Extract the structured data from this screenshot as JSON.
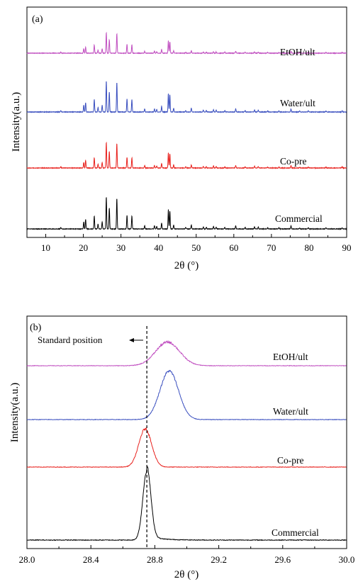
{
  "chart_data": [
    {
      "type": "line",
      "panel": "(a)",
      "xlabel": "2θ (°)",
      "ylabel": "Intensity(a.u.)",
      "xlim": [
        5,
        90
      ],
      "xticks": [
        10,
        20,
        30,
        40,
        50,
        60,
        70,
        80,
        90
      ],
      "y_ticks_shown": false,
      "grid": false,
      "legend": "none",
      "series_order": "stacked, top to bottom",
      "peaks": [
        {
          "x": 14.0,
          "h": 0.05
        },
        {
          "x": 20.1,
          "h": 0.22
        },
        {
          "x": 20.6,
          "h": 0.3
        },
        {
          "x": 22.9,
          "h": 0.4
        },
        {
          "x": 23.9,
          "h": 0.15
        },
        {
          "x": 25.0,
          "h": 0.22
        },
        {
          "x": 26.1,
          "h": 1.0
        },
        {
          "x": 26.9,
          "h": 0.65
        },
        {
          "x": 28.9,
          "h": 0.95
        },
        {
          "x": 31.6,
          "h": 0.42
        },
        {
          "x": 32.9,
          "h": 0.4
        },
        {
          "x": 36.3,
          "h": 0.1
        },
        {
          "x": 38.9,
          "h": 0.1
        },
        {
          "x": 39.5,
          "h": 0.08
        },
        {
          "x": 40.8,
          "h": 0.18
        },
        {
          "x": 42.6,
          "h": 0.6
        },
        {
          "x": 43.0,
          "h": 0.55
        },
        {
          "x": 44.0,
          "h": 0.12
        },
        {
          "x": 47.2,
          "h": 0.05
        },
        {
          "x": 48.7,
          "h": 0.12
        },
        {
          "x": 51.9,
          "h": 0.06
        },
        {
          "x": 52.7,
          "h": 0.05
        },
        {
          "x": 54.6,
          "h": 0.08
        },
        {
          "x": 55.3,
          "h": 0.06
        },
        {
          "x": 57.6,
          "h": 0.05
        },
        {
          "x": 60.5,
          "h": 0.1
        },
        {
          "x": 63.0,
          "h": 0.05
        },
        {
          "x": 65.5,
          "h": 0.07
        },
        {
          "x": 66.5,
          "h": 0.06
        },
        {
          "x": 69.0,
          "h": 0.04
        },
        {
          "x": 72.0,
          "h": 0.04
        },
        {
          "x": 75.2,
          "h": 0.1
        },
        {
          "x": 77.5,
          "h": 0.03
        },
        {
          "x": 79.8,
          "h": 0.04
        },
        {
          "x": 84.5,
          "h": 0.04
        },
        {
          "x": 88.8,
          "h": 0.04
        }
      ],
      "series": [
        {
          "name": "EtOH/ult",
          "color": "#c04ec0",
          "scale": 0.5
        },
        {
          "name": "Water/ult",
          "color": "#3a4fbf",
          "scale": 0.75
        },
        {
          "name": "Co-pre",
          "color": "#e8211d",
          "scale": 0.62
        },
        {
          "name": "Commercial",
          "color": "#000000",
          "scale": 0.78
        }
      ]
    },
    {
      "type": "line",
      "panel": "(b)",
      "xlabel": "2θ (°)",
      "ylabel": "Intensity(a.u.)",
      "xlim": [
        28.0,
        30.0
      ],
      "xticks": [
        "28.0",
        "28.4",
        "28.8",
        "29.2",
        "29.6",
        "30.0"
      ],
      "y_ticks_shown": false,
      "grid": false,
      "legend": "none",
      "reference_line": {
        "x": 28.75,
        "label": "Standard position",
        "style": "dashed"
      },
      "series": [
        {
          "name": "EtOH/ult",
          "color": "#c04ec0",
          "center": 28.88,
          "sigma": 0.075,
          "rel_height": 0.34
        },
        {
          "name": "Water/ult",
          "color": "#3a4fbf",
          "center": 28.89,
          "sigma": 0.058,
          "rel_height": 0.7
        },
        {
          "name": "Co-pre",
          "color": "#e8211d",
          "center": 28.74,
          "sigma": 0.04,
          "rel_height": 0.55
        },
        {
          "name": "Commercial",
          "color": "#000000",
          "center": 28.75,
          "sigma": 0.025,
          "rel_height": 1.0
        }
      ]
    }
  ]
}
